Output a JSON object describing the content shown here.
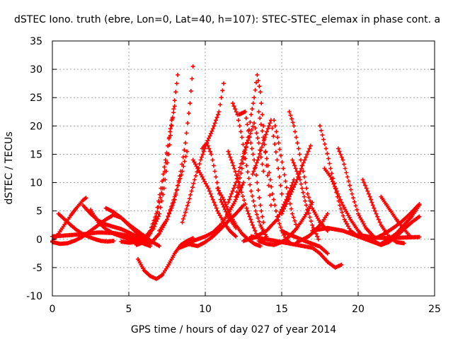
{
  "chart_data": {
    "type": "scatter",
    "title": "dSTEC Iono. truth (ebre, Lon=0, Lat=40, h=107): STEC-STEC_elemax in phase cont. a",
    "xlabel": "GPS time / hours of day 027 of year 2014",
    "ylabel": "dSTEC  / TECUs",
    "xlim": [
      0,
      25
    ],
    "ylim": [
      -10,
      35
    ],
    "xticks": [
      0,
      5,
      10,
      15,
      20,
      25
    ],
    "yticks": [
      -10,
      -5,
      0,
      5,
      10,
      15,
      20,
      25,
      30,
      35
    ],
    "grid": true,
    "marker": "+",
    "color": "#ff0000",
    "series": [
      {
        "x": [
          0.0,
          0.4,
          0.8,
          1.2,
          1.6,
          2.0,
          2.2
        ],
        "y": [
          -0.3,
          1.0,
          2.6,
          4.2,
          5.6,
          6.9,
          7.3
        ]
      },
      {
        "x": [
          0.4,
          0.8,
          1.2,
          1.6,
          2.0,
          2.4,
          2.8,
          3.2,
          3.6,
          4.0
        ],
        "y": [
          4.5,
          3.5,
          2.5,
          1.6,
          0.9,
          0.4,
          0.0,
          -0.3,
          -0.4,
          -0.3
        ]
      },
      {
        "x": [
          0.0,
          0.5,
          1.0,
          1.5,
          2.0,
          2.5,
          3.0,
          3.5,
          4.0,
          4.5,
          5.0,
          5.5,
          6.0
        ],
        "y": [
          -0.5,
          -0.8,
          -0.7,
          -0.2,
          0.5,
          1.5,
          2.5,
          3.5,
          4.3,
          3.8,
          2.5,
          1.2,
          0.3
        ]
      },
      {
        "x": [
          2.0,
          2.5,
          3.0,
          3.5,
          4.0,
          4.5,
          5.0,
          5.5,
          6.0,
          6.5
        ],
        "y": [
          6.0,
          4.5,
          3.3,
          2.6,
          2.2,
          1.8,
          1.2,
          0.5,
          -0.2,
          -0.6
        ]
      },
      {
        "x": [
          2.5,
          3.0,
          3.5,
          4.0,
          4.5,
          5.0,
          5.5,
          6.0,
          6.4
        ],
        "y": [
          5.2,
          3.0,
          1.8,
          1.0,
          0.5,
          0.1,
          -0.3,
          -0.8,
          -1.2
        ]
      },
      {
        "x": [
          3.5,
          4.0,
          4.5,
          5.0,
          5.5,
          6.0,
          6.5,
          7.0
        ],
        "y": [
          5.5,
          4.8,
          3.8,
          2.6,
          1.6,
          0.6,
          -0.4,
          -1.2
        ]
      },
      {
        "x": [
          0.0,
          1.0,
          2.0,
          3.0,
          4.0,
          5.0,
          5.6,
          6.2,
          6.6,
          7.0,
          7.3,
          7.6,
          7.8,
          8.0,
          8.2
        ],
        "y": [
          0.5,
          0.7,
          0.9,
          1.2,
          1.1,
          0.6,
          0.3,
          0.6,
          1.8,
          4.5,
          9.0,
          15.0,
          20.0,
          24.5,
          29.0
        ]
      },
      {
        "x": [
          4.5,
          5.0,
          5.5,
          6.0,
          6.4,
          6.8,
          7.1,
          7.4,
          7.7,
          8.0
        ],
        "y": [
          -0.4,
          -0.6,
          -0.5,
          0.0,
          1.5,
          4.5,
          9.0,
          14.0,
          19.0,
          23.5
        ]
      },
      {
        "x": [
          5.5,
          6.0,
          6.4,
          6.8,
          7.2,
          7.5,
          7.8
        ],
        "y": [
          -1.0,
          -0.5,
          1.0,
          4.0,
          9.0,
          15.0,
          21.0
        ]
      },
      {
        "x": [
          5.6,
          6.0,
          6.4,
          6.8,
          7.2,
          7.6,
          8.0,
          8.4,
          8.8,
          9.2
        ],
        "y": [
          -3.5,
          -5.5,
          -6.5,
          -7.0,
          -6.3,
          -4.5,
          -2.5,
          -1.0,
          -0.3,
          0.2
        ]
      },
      {
        "x": [
          7.0,
          7.5,
          8.0,
          8.4,
          8.7,
          9.0,
          9.2
        ],
        "y": [
          1.5,
          3.5,
          7.0,
          12.0,
          17.0,
          24.0,
          30.5
        ]
      },
      {
        "x": [
          6.5,
          7.0,
          7.5,
          8.0,
          8.5,
          8.8
        ],
        "y": [
          -0.5,
          1.0,
          3.5,
          7.5,
          12.0,
          15.5
        ]
      },
      {
        "x": [
          8.3,
          8.8,
          9.2,
          9.7,
          10.0,
          10.5,
          11.0,
          11.5,
          12.0,
          12.5
        ],
        "y": [
          -1.5,
          -1.0,
          -0.3,
          0.2,
          0.5,
          1.2,
          2.5,
          4.5,
          7.0,
          10.0
        ]
      },
      {
        "x": [
          8.8,
          9.5,
          10.0,
          10.5,
          11.0,
          11.5,
          12.0,
          12.5
        ],
        "y": [
          -0.8,
          -1.2,
          -0.5,
          0.5,
          1.8,
          3.2,
          4.5,
          6.0
        ]
      },
      {
        "x": [
          8.5,
          8.9,
          9.3,
          9.7,
          10.1,
          10.5,
          10.9,
          11.2
        ],
        "y": [
          3.0,
          6.5,
          10.5,
          14.0,
          17.0,
          19.5,
          22.5,
          27.5
        ]
      },
      {
        "x": [
          9.2,
          9.5,
          9.8,
          10.2,
          10.5,
          10.8,
          11.2,
          11.6,
          12.0
        ],
        "y": [
          14.0,
          12.5,
          11.0,
          9.0,
          7.0,
          5.0,
          3.0,
          1.5,
          0.5
        ]
      },
      {
        "x": [
          9.8,
          10.1,
          10.4,
          10.7,
          11.0,
          11.5,
          12.0
        ],
        "y": [
          16.0,
          17.0,
          15.0,
          11.0,
          7.0,
          4.0,
          2.0
        ]
      },
      {
        "x": [
          10.8,
          11.2,
          11.6,
          12.0,
          12.4,
          12.8,
          13.2,
          13.6
        ],
        "y": [
          9.0,
          7.0,
          4.5,
          2.5,
          1.0,
          0.0,
          -0.8,
          -1.2
        ]
      },
      {
        "x": [
          11.5,
          11.9,
          12.3,
          12.7,
          13.1,
          13.4
        ],
        "y": [
          15.5,
          12.5,
          9.0,
          5.5,
          2.5,
          0.5
        ]
      },
      {
        "x": [
          11.8,
          12.1,
          12.4,
          12.7,
          13.0,
          13.3,
          13.6,
          14.0
        ],
        "y": [
          24.0,
          22.0,
          18.0,
          13.0,
          8.5,
          5.0,
          2.5,
          0.5
        ]
      },
      {
        "x": [
          11.5,
          12.0,
          12.4,
          12.8,
          13.2,
          13.5,
          13.8
        ],
        "y": [
          6.5,
          10.0,
          14.0,
          17.5,
          20.5,
          17.0,
          12.0
        ]
      },
      {
        "x": [
          12.2,
          12.6,
          12.9,
          13.2,
          13.4,
          13.6,
          13.8
        ],
        "y": [
          22.0,
          22.5,
          18.0,
          14.0,
          10.0,
          6.0,
          3.0
        ]
      },
      {
        "x": [
          12.0,
          12.4,
          12.8,
          13.0,
          13.2,
          13.4,
          13.6,
          13.8,
          14.0,
          14.3
        ],
        "y": [
          7.5,
          12.5,
          18.0,
          22.0,
          25.0,
          29.0,
          26.0,
          20.0,
          13.0,
          6.0
        ]
      },
      {
        "x": [
          13.1,
          13.5,
          13.9,
          14.3,
          14.7,
          15.0
        ],
        "y": [
          11.5,
          14.5,
          18.0,
          21.0,
          14.0,
          8.0
        ]
      },
      {
        "x": [
          13.5,
          13.8,
          14.1,
          14.4,
          14.7,
          15.0,
          15.3,
          15.6
        ],
        "y": [
          22.5,
          18.0,
          13.0,
          8.0,
          4.0,
          1.5,
          0.0,
          -0.8
        ]
      },
      {
        "x": [
          13.5,
          14.0,
          14.5,
          15.0,
          15.5,
          16.0,
          16.5,
          17.0
        ],
        "y": [
          -0.3,
          -0.8,
          -1.0,
          -0.5,
          0.5,
          2.0,
          4.0,
          6.5
        ]
      },
      {
        "x": [
          12.5,
          13.2,
          14.0,
          14.7,
          15.3,
          15.8
        ],
        "y": [
          -0.3,
          0.3,
          1.5,
          3.5,
          7.0,
          10.5
        ]
      },
      {
        "x": [
          15.0,
          15.5,
          16.0,
          16.5,
          16.9
        ],
        "y": [
          4.5,
          7.5,
          10.5,
          14.0,
          16.5
        ]
      },
      {
        "x": [
          14.5,
          14.8,
          15.1,
          15.4,
          15.7,
          16.0
        ],
        "y": [
          21.0,
          17.0,
          12.5,
          8.0,
          4.5,
          2.0
        ]
      },
      {
        "x": [
          15.5,
          15.8,
          16.1,
          16.4,
          16.7,
          17.0,
          17.5,
          18.0
        ],
        "y": [
          22.5,
          20.0,
          16.0,
          12.0,
          8.0,
          5.5,
          3.0,
          1.5
        ]
      },
      {
        "x": [
          15.7,
          16.2,
          16.6,
          17.0,
          17.4
        ],
        "y": [
          14.0,
          10.5,
          6.0,
          2.5,
          0.0
        ]
      },
      {
        "x": [
          13.0,
          14.0,
          15.0,
          16.0,
          17.0,
          17.5,
          18.0,
          18.5,
          18.9
        ],
        "y": [
          0.5,
          0.0,
          -0.5,
          -1.0,
          -1.5,
          -2.5,
          -4.0,
          -5.0,
          -4.5
        ]
      },
      {
        "x": [
          15.0,
          15.5,
          16.0,
          16.5,
          17.0,
          17.5,
          18.0
        ],
        "y": [
          1.5,
          0.8,
          0.3,
          -0.3,
          -0.8,
          -1.3,
          -2.5
        ]
      },
      {
        "x": [
          16.0,
          16.4,
          16.8,
          17.2,
          17.6,
          18.0
        ],
        "y": [
          -0.5,
          0.0,
          0.6,
          1.6,
          2.8,
          4.5
        ]
      },
      {
        "x": [
          17.5,
          17.9,
          18.2,
          18.5,
          18.8,
          19.1,
          19.5,
          20.0
        ],
        "y": [
          20.0,
          16.0,
          12.5,
          9.0,
          6.0,
          3.5,
          1.5,
          0.5
        ]
      },
      {
        "x": [
          17.8,
          18.2,
          18.6,
          19.0,
          19.5,
          20.0,
          20.5
        ],
        "y": [
          12.5,
          11.0,
          8.5,
          6.0,
          3.5,
          1.5,
          0.0
        ]
      },
      {
        "x": [
          18.7,
          19.0,
          19.3,
          19.6,
          20.0,
          20.5,
          21.0
        ],
        "y": [
          16.0,
          14.0,
          11.0,
          8.0,
          4.5,
          2.0,
          0.5
        ]
      },
      {
        "x": [
          17.0,
          18.0,
          19.0,
          20.0,
          20.5,
          21.0,
          21.5
        ],
        "y": [
          1.5,
          2.0,
          1.5,
          0.5,
          0.0,
          -0.5,
          -1.0
        ]
      },
      {
        "x": [
          20.3,
          20.7,
          21.1,
          21.5,
          22.0,
          22.5,
          23.0
        ],
        "y": [
          10.5,
          8.0,
          5.0,
          2.5,
          0.5,
          -0.5,
          -0.7
        ]
      },
      {
        "x": [
          21.5,
          22.0,
          22.5,
          23.0,
          23.4
        ],
        "y": [
          7.5,
          5.5,
          3.5,
          1.8,
          0.5
        ]
      },
      {
        "x": [
          20.5,
          21.0,
          21.5,
          22.0,
          22.5,
          23.0
        ],
        "y": [
          0.5,
          -0.3,
          -1.0,
          -0.5,
          0.5,
          2.5
        ]
      },
      {
        "x": [
          20.0,
          21.0,
          22.0,
          23.0,
          24.0
        ],
        "y": [
          0.8,
          0.3,
          0.2,
          0.3,
          0.4
        ]
      },
      {
        "x": [
          21.5,
          22.0,
          22.5,
          23.0,
          23.5,
          24.0
        ],
        "y": [
          -0.8,
          0.0,
          1.0,
          2.5,
          4.0,
          6.0
        ]
      },
      {
        "x": [
          21.0,
          21.6,
          22.2,
          22.8,
          23.4,
          24.0
        ],
        "y": [
          0.0,
          0.8,
          1.8,
          3.0,
          4.5,
          6.2
        ]
      },
      {
        "x": [
          22.0,
          22.5,
          23.0,
          23.5,
          24.0
        ],
        "y": [
          -0.5,
          0.5,
          1.8,
          3.0,
          4.0
        ]
      }
    ]
  }
}
